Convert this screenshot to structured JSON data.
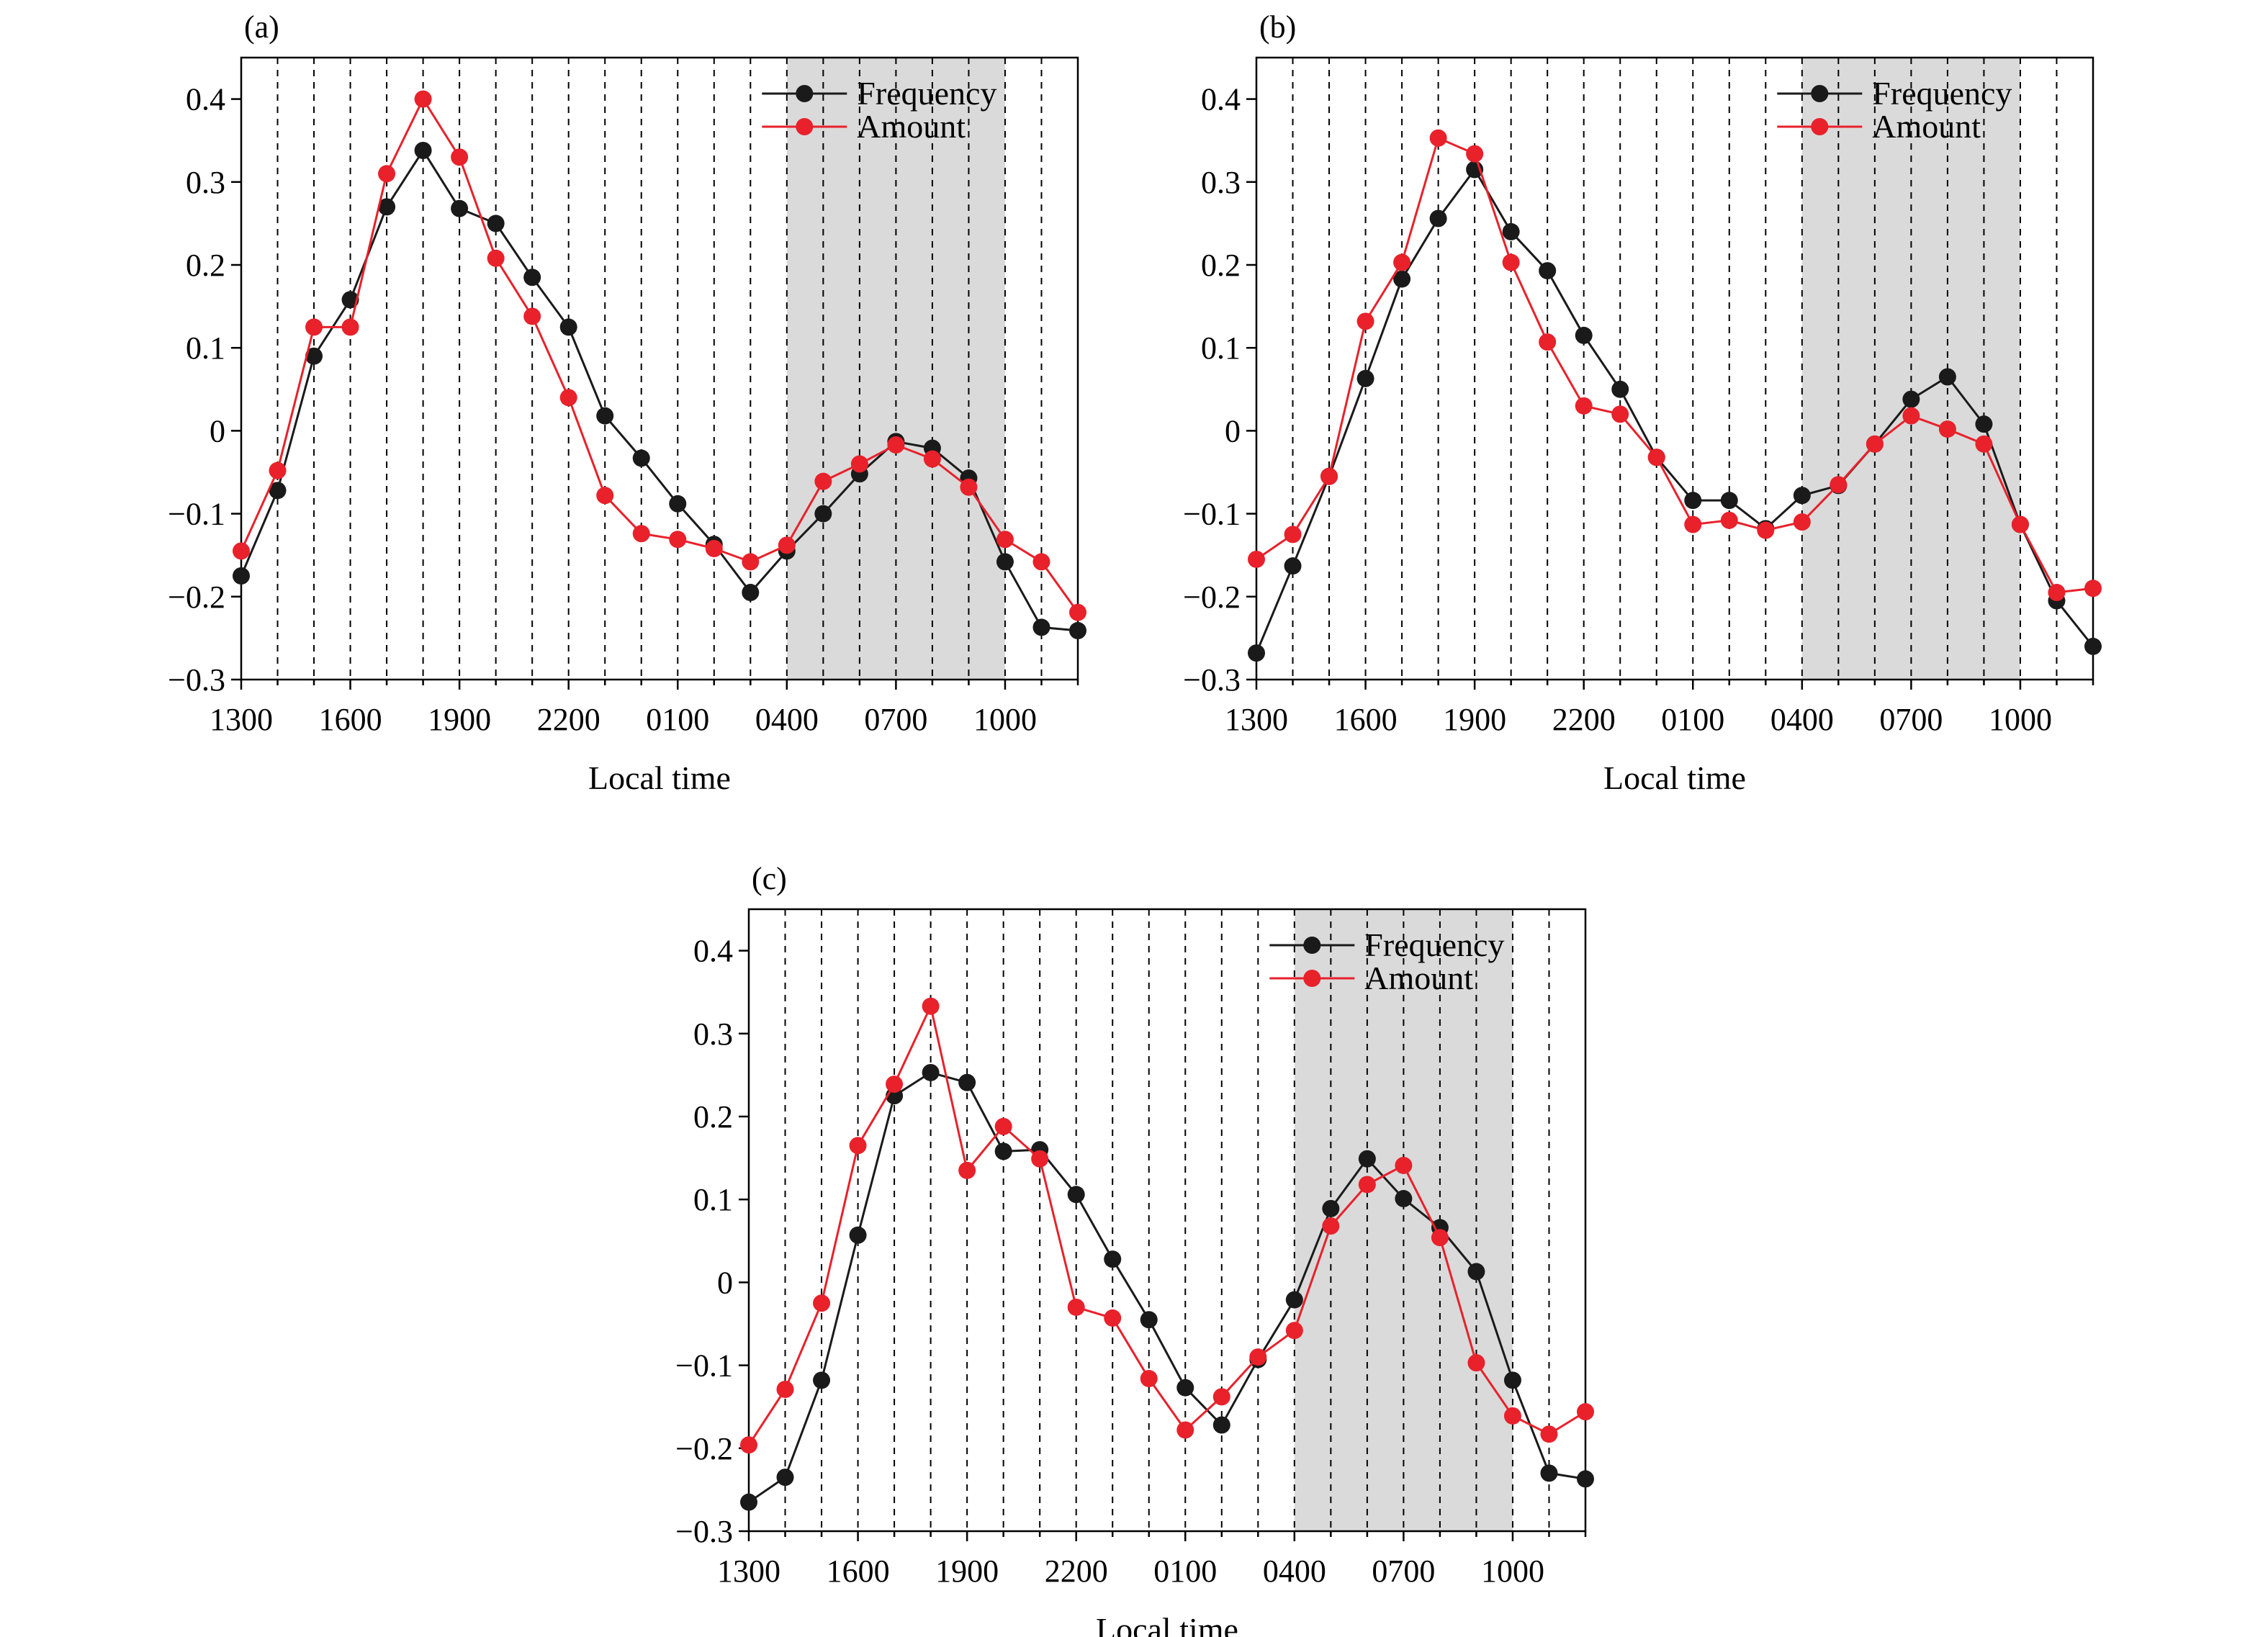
{
  "figure": {
    "colors": {
      "frequency": "#1a1a1a",
      "amount": "#e8212b",
      "shade": "#dadada"
    }
  },
  "chart_data": [
    {
      "type": "line",
      "panel": "(a)",
      "xlabel": "Local time",
      "ylabel": "",
      "x": [
        1300,
        1400,
        1500,
        1600,
        1700,
        1800,
        1900,
        2000,
        2100,
        2200,
        2300,
        2400,
        100,
        200,
        300,
        400,
        500,
        600,
        700,
        800,
        900,
        1000,
        1100,
        1200
      ],
      "xtick_labels": [
        "1300",
        "1600",
        "1900",
        "2200",
        "0100",
        "0400",
        "0700",
        "1000"
      ],
      "ylim": [
        -0.3,
        0.45
      ],
      "yticks": [
        "0.4",
        "0.3",
        "0.2",
        "0.1",
        "0",
        "−0.1",
        "−0.2",
        "−0.3"
      ],
      "shaded_range": [
        "0400",
        "1000"
      ],
      "grid": "vertical dashed at each hour",
      "legend_position": "top-right",
      "series": [
        {
          "name": "Frequency",
          "color": "#1a1a1a",
          "values": [
            -0.175,
            -0.072,
            0.09,
            0.158,
            0.27,
            0.338,
            0.268,
            0.25,
            0.185,
            0.125,
            0.018,
            -0.033,
            -0.088,
            -0.137,
            -0.195,
            -0.145,
            -0.1,
            -0.052,
            -0.013,
            -0.021,
            -0.057,
            -0.158,
            -0.237,
            -0.241
          ]
        },
        {
          "name": "Amount",
          "color": "#e8212b",
          "values": [
            -0.145,
            -0.048,
            0.125,
            0.125,
            0.31,
            0.4,
            0.33,
            0.208,
            0.138,
            0.04,
            -0.078,
            -0.124,
            -0.131,
            -0.142,
            -0.158,
            -0.138,
            -0.061,
            -0.04,
            -0.017,
            -0.034,
            -0.068,
            -0.131,
            -0.158,
            -0.219
          ]
        }
      ]
    },
    {
      "type": "line",
      "panel": "(b)",
      "xlabel": "Local time",
      "ylabel": "",
      "x": [
        1300,
        1400,
        1500,
        1600,
        1700,
        1800,
        1900,
        2000,
        2100,
        2200,
        2300,
        2400,
        100,
        200,
        300,
        400,
        500,
        600,
        700,
        800,
        900,
        1000,
        1100,
        1200
      ],
      "xtick_labels": [
        "1300",
        "1600",
        "1900",
        "2200",
        "0100",
        "0400",
        "0700",
        "1000"
      ],
      "ylim": [
        -0.3,
        0.45
      ],
      "yticks": [
        "0.4",
        "0.3",
        "0.2",
        "0.1",
        "0",
        "−0.1",
        "−0.2",
        "−0.3"
      ],
      "shaded_range": [
        "0400",
        "1000"
      ],
      "grid": "vertical dashed at each hour",
      "legend_position": "top-right",
      "series": [
        {
          "name": "Frequency",
          "color": "#1a1a1a",
          "values": [
            -0.268,
            -0.163,
            -0.055,
            0.063,
            0.183,
            0.256,
            0.315,
            0.24,
            0.193,
            0.115,
            0.05,
            -0.032,
            -0.084,
            -0.084,
            -0.118,
            -0.078,
            -0.066,
            -0.016,
            0.038,
            0.065,
            0.008,
            -0.113,
            -0.205,
            -0.26
          ]
        },
        {
          "name": "Amount",
          "color": "#e8212b",
          "values": [
            -0.155,
            -0.125,
            -0.055,
            0.132,
            0.203,
            0.353,
            0.334,
            0.203,
            0.107,
            0.03,
            0.02,
            -0.032,
            -0.113,
            -0.108,
            -0.12,
            -0.11,
            -0.065,
            -0.016,
            0.018,
            0.002,
            -0.016,
            -0.113,
            -0.195,
            -0.19
          ]
        }
      ]
    },
    {
      "type": "line",
      "panel": "(c)",
      "xlabel": "Local time",
      "ylabel": "",
      "x": [
        1300,
        1400,
        1500,
        1600,
        1700,
        1800,
        1900,
        2000,
        2100,
        2200,
        2300,
        2400,
        100,
        200,
        300,
        400,
        500,
        600,
        700,
        800,
        900,
        1000,
        1100,
        1200
      ],
      "xtick_labels": [
        "1300",
        "1600",
        "1900",
        "2200",
        "0100",
        "0400",
        "0700",
        "1000"
      ],
      "ylim": [
        -0.3,
        0.45
      ],
      "yticks": [
        "0.4",
        "0.3",
        "0.2",
        "0.1",
        "0",
        "−0.1",
        "−0.2",
        "−0.3"
      ],
      "shaded_range": [
        "0400",
        "1000"
      ],
      "grid": "vertical dashed at each hour",
      "legend_position": "top-right",
      "series": [
        {
          "name": "Frequency",
          "color": "#1a1a1a",
          "values": [
            -0.265,
            -0.235,
            -0.118,
            0.057,
            0.225,
            0.253,
            0.241,
            0.158,
            0.16,
            0.106,
            0.028,
            -0.045,
            -0.127,
            -0.172,
            -0.093,
            -0.021,
            0.089,
            0.149,
            0.101,
            0.066,
            0.013,
            -0.118,
            -0.23,
            -0.237
          ]
        },
        {
          "name": "Amount",
          "color": "#e8212b",
          "values": [
            -0.196,
            -0.129,
            -0.025,
            0.165,
            0.239,
            0.333,
            0.135,
            0.188,
            0.149,
            -0.03,
            -0.043,
            -0.116,
            -0.178,
            -0.138,
            -0.09,
            -0.058,
            0.068,
            0.118,
            0.141,
            0.054,
            -0.097,
            -0.161,
            -0.183,
            -0.156
          ]
        }
      ]
    }
  ]
}
